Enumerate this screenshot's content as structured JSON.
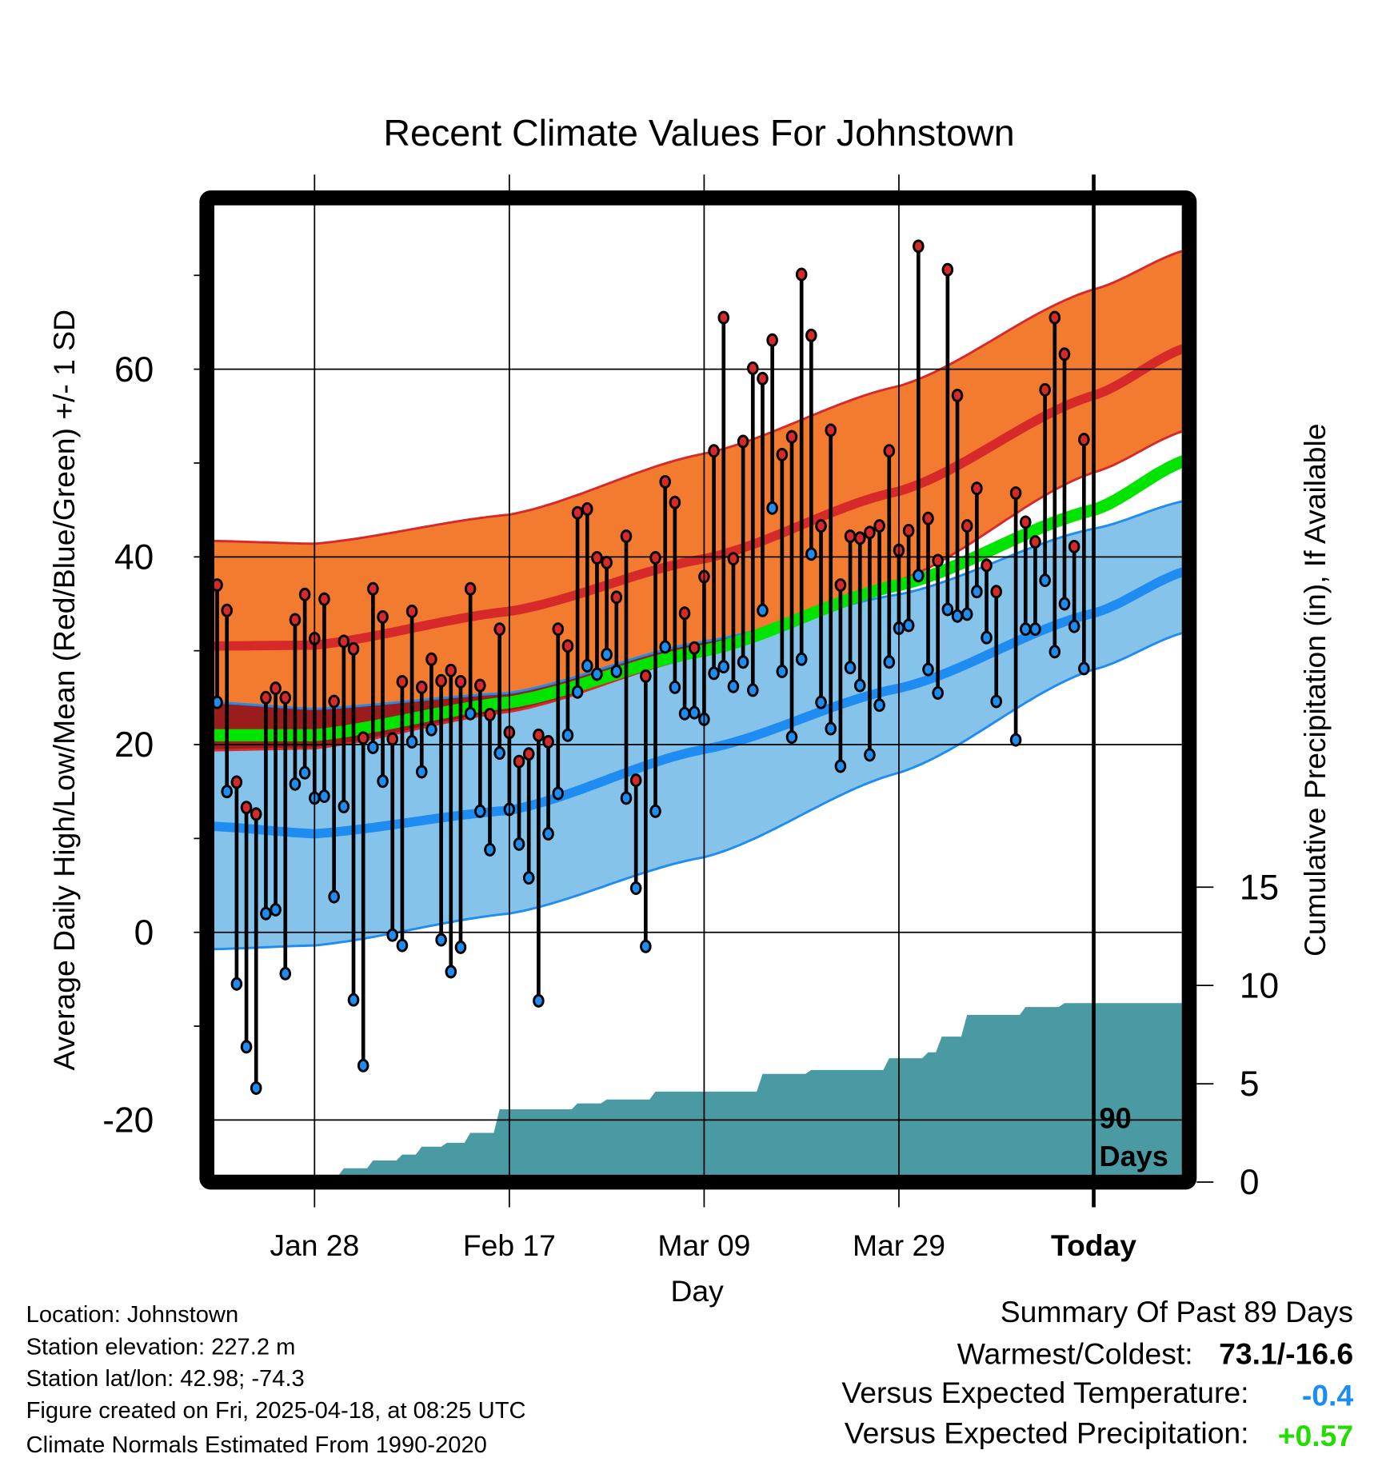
{
  "chart_data": {
    "type": "line",
    "title": "Recent Climate Values For Johnstown",
    "xlabel": "Day",
    "ylabel": "Average Daily High/Low/Mean (Red/Blue/Green) +/- 1 SD",
    "y2label": "Cumulative Precipitation (in), If Available",
    "ylim": [
      -26,
      80
    ],
    "y2lim": [
      0,
      15
    ],
    "x_ticks": [
      {
        "day": 10,
        "label": "Jan 28"
      },
      {
        "day": 30,
        "label": "Feb 17"
      },
      {
        "day": 50,
        "label": "Mar 09"
      },
      {
        "day": 70,
        "label": "Mar 29"
      },
      {
        "day": 90,
        "label": "Today"
      }
    ],
    "y_ticks": [
      {
        "v": -20,
        "label": "-20"
      },
      {
        "v": 0,
        "label": "0"
      },
      {
        "v": 20,
        "label": "20"
      },
      {
        "v": 40,
        "label": "40"
      },
      {
        "v": 60,
        "label": "60"
      }
    ],
    "y2_ticks": [
      {
        "v": 0,
        "label": "0"
      },
      {
        "v": 5,
        "label": "5"
      },
      {
        "v": 10,
        "label": "10"
      },
      {
        "v": 15,
        "label": "15"
      }
    ],
    "today_marker": {
      "day": 90,
      "label_top": "90",
      "label_bottom": "Days"
    },
    "days": [
      0,
      1,
      2,
      3,
      4,
      5,
      6,
      7,
      8,
      9,
      10,
      11,
      12,
      13,
      14,
      15,
      16,
      17,
      18,
      19,
      20,
      21,
      22,
      23,
      24,
      25,
      26,
      27,
      28,
      29,
      30,
      31,
      32,
      33,
      34,
      35,
      36,
      37,
      38,
      39,
      40,
      41,
      42,
      43,
      44,
      45,
      46,
      47,
      48,
      49,
      50,
      51,
      52,
      53,
      54,
      55,
      56,
      57,
      58,
      59,
      60,
      61,
      62,
      63,
      64,
      65,
      66,
      67,
      68,
      69,
      70,
      71,
      72,
      73,
      74,
      75,
      76,
      77,
      78,
      79,
      80,
      82,
      83,
      84,
      85,
      86,
      87,
      88,
      89
    ],
    "highs": [
      37,
      34.3,
      16,
      13.3,
      12.6,
      25,
      26,
      25,
      33.3,
      36,
      31.3,
      35.5,
      24.6,
      31,
      30.2,
      20.7,
      36.6,
      33.6,
      20.6,
      26.7,
      34.2,
      26.1,
      29.1,
      26.8,
      27.9,
      26.7,
      36.6,
      26.3,
      23.2,
      32.3,
      21.3,
      18.2,
      19,
      21,
      20.3,
      32.3,
      30.5,
      44.7,
      45.1,
      39.9,
      39.4,
      35.7,
      42.2,
      16.2,
      27.3,
      39.9,
      48,
      45.8,
      34,
      30.3,
      37.9,
      51.3,
      65.5,
      39.8,
      52.3,
      60.1,
      59,
      63.1,
      50.9,
      52.8,
      70.1,
      63.6,
      43.3,
      53.5,
      37,
      42.2,
      42,
      42.6,
      43.3,
      51.3,
      40.7,
      42.8,
      73.1,
      44.1,
      39.6,
      70.6,
      57.2,
      43.3,
      47.3,
      39.1,
      36.3,
      46.8,
      43.7,
      41.6,
      57.8,
      65.5,
      61.6,
      41.1,
      52.5
    ],
    "lows": [
      24.5,
      15,
      -5.5,
      -12.2,
      -16.6,
      2,
      2.4,
      -4.4,
      15.8,
      17,
      14.3,
      14.5,
      3.8,
      13.4,
      -7.2,
      -14.2,
      19.7,
      16.1,
      -0.3,
      -1.4,
      20.3,
      17.1,
      21.6,
      -0.8,
      -4.2,
      -1.6,
      23.3,
      12.9,
      8.8,
      19.1,
      13.1,
      9.4,
      5.8,
      -7.3,
      10.5,
      14.8,
      21,
      25.6,
      28.4,
      27.5,
      29.6,
      27.8,
      14.3,
      4.7,
      -1.5,
      12.9,
      30.4,
      26.1,
      23.3,
      23.4,
      22.7,
      27.6,
      28.3,
      26.2,
      28.8,
      25.8,
      34.3,
      45.2,
      27.8,
      20.8,
      29.1,
      40.3,
      24.5,
      21.7,
      17.7,
      28.2,
      26.3,
      18.9,
      24.2,
      28.8,
      32.4,
      32.7,
      38,
      28,
      25.5,
      34.4,
      33.7,
      33.9,
      36.3,
      31.4,
      24.6,
      20.5,
      32.3,
      32.3,
      37.5,
      29.9,
      35,
      32.6,
      28.1
    ],
    "normals": {
      "days": [
        -0.5,
        10,
        30,
        50,
        70,
        90,
        99.5
      ],
      "high_upper": [
        41.7,
        41.4,
        44.5,
        51,
        58.2,
        68.5,
        72.7
      ],
      "high_mean": [
        30.5,
        30.6,
        34.2,
        39.8,
        47,
        57.2,
        62.3
      ],
      "high_lower": [
        19.4,
        19.6,
        23.5,
        29.5,
        37.5,
        49,
        53.5
      ],
      "mean": [
        21,
        21,
        24.5,
        30,
        37,
        45,
        50.3
      ],
      "low_upper": [
        24.5,
        23.8,
        25.5,
        31,
        36,
        43,
        46
      ],
      "low_mean": [
        11.3,
        10.5,
        13,
        19.5,
        26,
        34,
        38.5
      ],
      "low_lower": [
        -1.8,
        -1.4,
        2,
        8,
        17,
        28,
        32
      ]
    },
    "precip_steps": [
      [
        10,
        0
      ],
      [
        10.7,
        0.3
      ],
      [
        13,
        0.7
      ],
      [
        16,
        1.1
      ],
      [
        19,
        1.4
      ],
      [
        21,
        1.8
      ],
      [
        23.6,
        2.0
      ],
      [
        26,
        2.5
      ],
      [
        29,
        3.7
      ],
      [
        37,
        4.0
      ],
      [
        40,
        4.2
      ],
      [
        45,
        4.6
      ],
      [
        56,
        5.5
      ],
      [
        61,
        5.7
      ],
      [
        69,
        6.3
      ],
      [
        73,
        6.6
      ],
      [
        74.4,
        7.4
      ],
      [
        77,
        8.5
      ],
      [
        83,
        8.9
      ],
      [
        87,
        9.1
      ],
      [
        99.5,
        9.1
      ]
    ],
    "colors": {
      "high_band": "#f27b30",
      "high_line": "#d62a2a",
      "overlap": "#9a1c1c",
      "mean_line": "#00e400",
      "low_band": "#86c3ea",
      "low_line": "#1e8cf0",
      "precip": "#4a9aa3",
      "high_dot": "#d62a2a",
      "low_dot": "#1e8cf0"
    }
  },
  "footer": {
    "location": "Location: Johnstown",
    "elevation": "Station elevation: 227.2 m",
    "latlon": "Station lat/lon: 42.98; -74.3",
    "created": "Figure created on Fri, 2025-04-18, at 08:25 UTC",
    "normals": "Climate Normals Estimated From 1990-2020"
  },
  "summary": {
    "title": "Summary Of Past 89 Days",
    "warm_cold_label": "Warmest/Coldest:",
    "warm_cold_value": "73.1/-16.6",
    "temp_label": "Versus Expected Temperature:",
    "temp_value": "-0.4",
    "temp_color": "#1e8cf0",
    "precip_label": "Versus Expected Precipitation:",
    "precip_value": "+0.57",
    "precip_color": "#22dd00"
  }
}
